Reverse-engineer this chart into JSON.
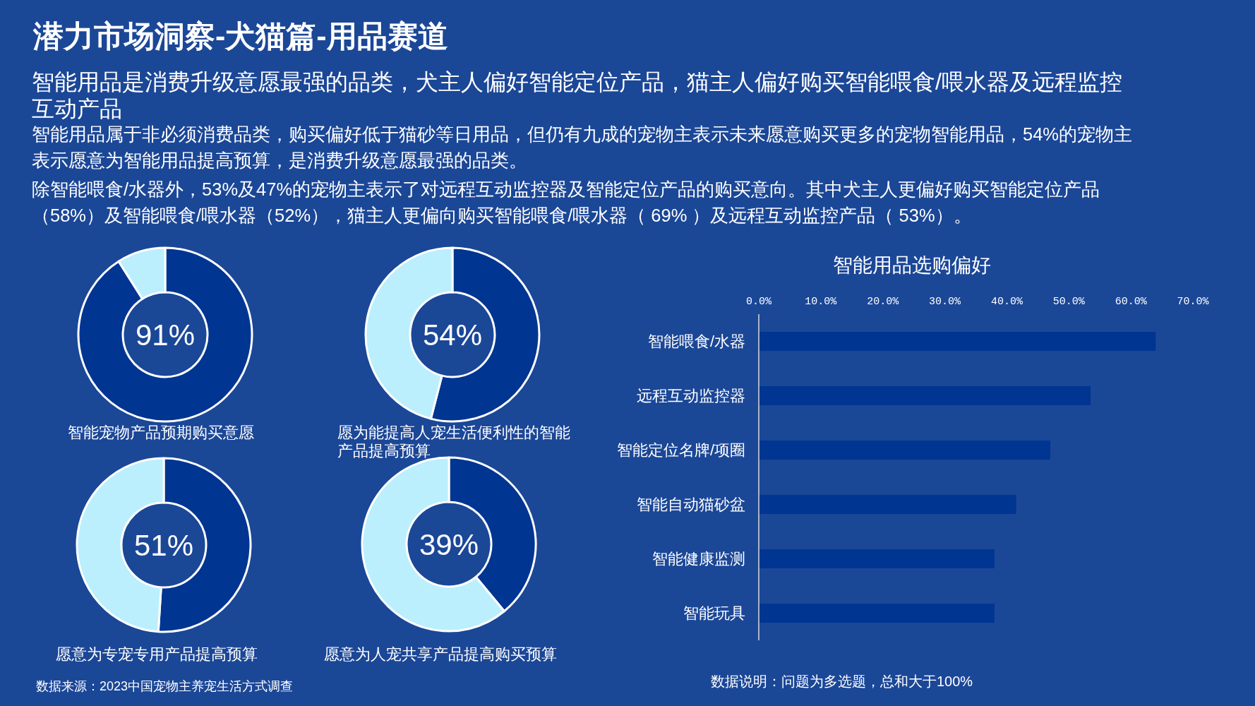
{
  "chart_data": [
    {
      "type": "other",
      "title": "潜力市场洞察-犬猫篇-用品赛道",
      "subtitle": "智能用品是消费升级意愿最强的品类，犬主人偏好智能定位产品，猫主人偏好购买智能喂食/喂水器及远程监控互动产品",
      "annotations": [
        "智能用品属于非必须消费品类，购买偏好低于猫砂等日用品，但仍有九成的宠物主表示未来愿意购买更多的宠物智能用品，54%的宠物主表示愿意为智能用品提高预算，是消费升级意愿最强的品类。",
        "除智能喂食/水器外，53%及47%的宠物主表示了对远程互动监控器及智能定位产品的购买意向。其中犬主人更偏好购买智能定位产品（58%）及智能喂食/喂水器（52%），猫主人更偏向购买智能喂食/喂水器（ 69% ）及远程互动监控产品（ 53%）。",
        "数据来源：2023中国宠物主养宠生活方式调查"
      ]
    },
    {
      "type": "donut",
      "title": "智能宠物产品预期购买意愿",
      "categories": [
        null,
        null
      ],
      "values": [
        91,
        9
      ],
      "colors": [
        "#003591",
        "#bbeffd"
      ],
      "value_labels": [
        "91%",
        null
      ]
    },
    {
      "type": "donut",
      "title": "愿为能提高人宠生活便利性的智能产品提高预算",
      "categories": [
        null,
        null
      ],
      "values": [
        54,
        46
      ],
      "colors": [
        "#003591",
        "#bbeffd"
      ],
      "value_labels": [
        "54%",
        null
      ]
    },
    {
      "type": "donut",
      "title": "愿意为专宠专用产品提高预算",
      "categories": [
        null,
        null
      ],
      "values": [
        51,
        49
      ],
      "colors": [
        "#003591",
        "#bbeffd"
      ],
      "value_labels": [
        "51%",
        null
      ]
    },
    {
      "type": "donut",
      "title": "愿意为人宠共享产品提高购买预算",
      "categories": [
        null,
        null
      ],
      "values": [
        39,
        61
      ],
      "colors": [
        "#003591",
        "#bbeffd"
      ],
      "value_labels": [
        "39%",
        null
      ]
    },
    {
      "type": "bar",
      "orientation": "horizontal",
      "title": "智能用品选购偏好",
      "categories": [
        "智能喂食/水器",
        "远程互动监控器",
        "智能定位名牌/项圈",
        "智能自动猫砂盆",
        "智能健康监测",
        "智能玩具"
      ],
      "values": [
        64,
        53.5,
        47,
        41.5,
        38,
        38
      ],
      "color": "#003591",
      "xlim": [
        0,
        70
      ],
      "xticks": [
        {
          "value": 0,
          "label": "0.0%"
        },
        {
          "value": 10,
          "label": "10.0%"
        },
        {
          "value": 20,
          "label": "20.0%"
        },
        {
          "value": 30,
          "label": "30.0%"
        },
        {
          "value": 40,
          "label": "40.0%"
        },
        {
          "value": 50,
          "label": "50.0%"
        },
        {
          "value": 60,
          "label": "60.0%"
        },
        {
          "value": 70,
          "label": "70.0%"
        }
      ],
      "annotations": [
        "数据说明：问题为多选题，总和大于100%"
      ]
    }
  ]
}
